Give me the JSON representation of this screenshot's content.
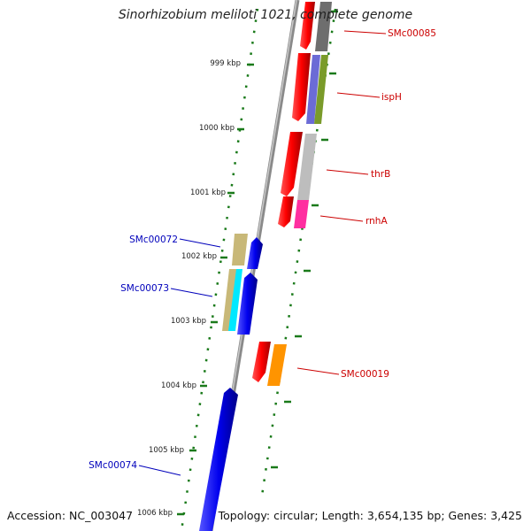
{
  "title": "Sinorhizobium meliloti 1021, complete genome",
  "footer": {
    "accession": "Accession: NC_003047",
    "summary": "Topology: circular; Length: 3,654,135 bp; Genes: 3,425"
  },
  "colors": {
    "forward_label": "#cc0000",
    "reverse_label": "#0000bb",
    "tick": "#1a7a1a",
    "backbone": "#8a8a8a"
  },
  "ticks": [
    "999 kbp",
    "1000 kbp",
    "1001 kbp",
    "1002 kbp",
    "1003 kbp",
    "1004 kbp",
    "1005 kbp",
    "1006 kbp"
  ],
  "gene_labels": {
    "forward": [
      "SMc00085",
      "ispH",
      "thrB",
      "rnhA",
      "SMc00019"
    ],
    "reverse": [
      "SMc00072",
      "SMc00073",
      "SMc00074"
    ]
  }
}
